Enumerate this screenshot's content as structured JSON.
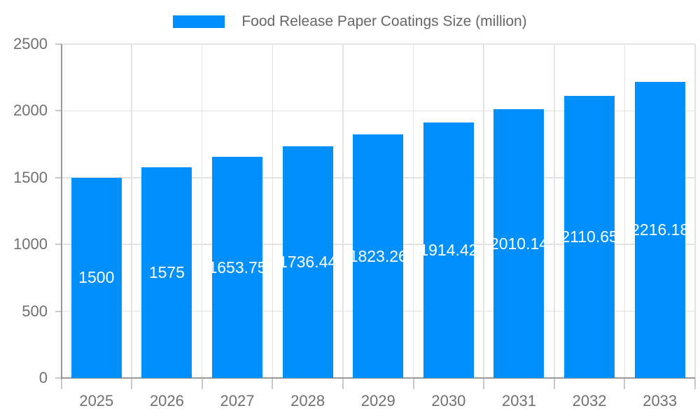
{
  "legend": {
    "label": "Food Release Paper Coatings Size (million)"
  },
  "colors": {
    "bar": "#008FFB",
    "grid": "#e2e2e2",
    "axis": "#999999",
    "tick": "#c8c8c8",
    "axis_label": "#707070",
    "legend_text": "#666666",
    "data_label": "#ffffff",
    "background": "#ffffff"
  },
  "chart_data": {
    "type": "bar",
    "title": "Food Release Paper Coatings Size (million)",
    "xlabel": "",
    "ylabel": "",
    "categories": [
      "2025",
      "2026",
      "2027",
      "2028",
      "2029",
      "2030",
      "2031",
      "2032",
      "2033"
    ],
    "series": [
      {
        "name": "Food Release Paper Coatings Size (million)",
        "values": [
          1500,
          1575,
          1653.75,
          1736.44,
          1823.26,
          1914.42,
          2010.14,
          2110.65,
          2216.18
        ]
      }
    ],
    "value_labels": [
      "1500",
      "1575",
      "1653.75",
      "1736.44",
      "1823.26",
      "1914.42",
      "2010.14",
      "2110.65",
      "2216.18"
    ],
    "ylim": [
      0,
      2500
    ],
    "yticks": [
      0,
      500,
      1000,
      1500,
      2000,
      2500
    ],
    "ytick_labels": [
      "0",
      "500",
      "1000",
      "1500",
      "2000",
      "2500"
    ],
    "grid": true,
    "legend_position": "top",
    "data_labels": "inside-center-white"
  }
}
